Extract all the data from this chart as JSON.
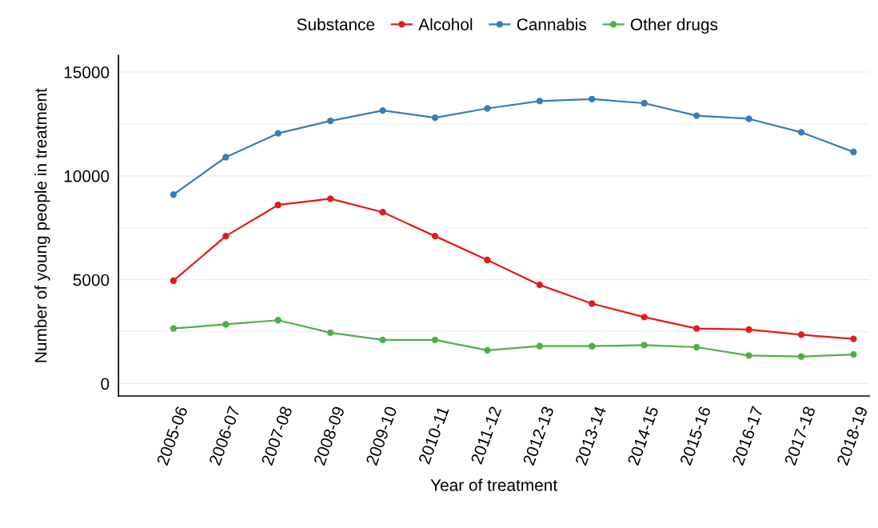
{
  "chart_data": {
    "type": "line",
    "xlabel": "Year of treatment",
    "ylabel": "Number of young people in treatment",
    "legend_title": "Substance",
    "categories": [
      "2005-06",
      "2006-07",
      "2007-08",
      "2008-09",
      "2009-10",
      "2010-11",
      "2011-12",
      "2012-13",
      "2013-14",
      "2014-15",
      "2015-16",
      "2016-17",
      "2017-18",
      "2018-19"
    ],
    "series": [
      {
        "name": "Alcohol",
        "color": "#e41a1c",
        "values": [
          4950,
          7100,
          8600,
          8900,
          8250,
          7100,
          5950,
          4750,
          3850,
          3200,
          2650,
          2600,
          2350,
          2150
        ]
      },
      {
        "name": "Cannabis",
        "color": "#377eb8",
        "values": [
          9100,
          10900,
          12050,
          12650,
          13150,
          12800,
          13250,
          13600,
          13700,
          13500,
          12900,
          12750,
          12100,
          11150
        ]
      },
      {
        "name": "Other drugs",
        "color": "#4daf4a",
        "values": [
          2650,
          2850,
          3050,
          2450,
          2100,
          2100,
          1600,
          1800,
          1800,
          1850,
          1750,
          1350,
          1300,
          1400
        ]
      }
    ],
    "ylim": [
      -600,
      15800
    ],
    "yticks": [
      0,
      {
        "value": 2500,
        "label": null
      },
      5000,
      {
        "value": 7500,
        "label": null
      },
      10000,
      {
        "value": 12500,
        "label": null
      },
      15000
    ],
    "grid": "y",
    "legend": "top",
    "marker": "circle",
    "line_style": "solid"
  }
}
